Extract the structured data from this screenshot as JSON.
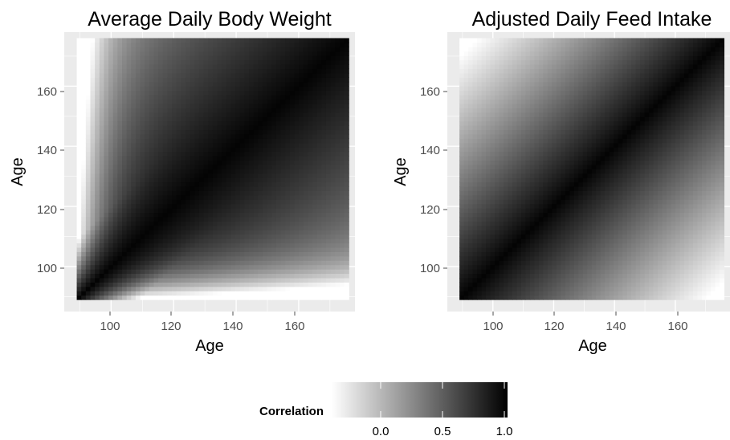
{
  "chart_data": [
    {
      "type": "heatmap",
      "title": "Average Daily Body Weight",
      "xlabel": "Age",
      "ylabel": "Age",
      "xlim": [
        85,
        178
      ],
      "ylim": [
        85,
        178
      ],
      "x_range": [
        89,
        176
      ],
      "y_range": [
        89,
        176
      ],
      "x_ticks": [
        100,
        120,
        140,
        160
      ],
      "y_ticks": [
        100,
        120,
        140,
        160
      ],
      "grid": true,
      "colormap": "white-to-black"
    },
    {
      "type": "heatmap",
      "title": "Adjusted Daily Feed Intake",
      "xlabel": "Age",
      "ylabel": "Age",
      "xlim": [
        85,
        178
      ],
      "ylim": [
        85,
        178
      ],
      "x_range": [
        89,
        176
      ],
      "y_range": [
        89,
        176
      ],
      "x_ticks": [
        100,
        120,
        140,
        160
      ],
      "y_ticks": [
        100,
        120,
        140,
        160
      ],
      "grid": true,
      "colormap": "white-to-black"
    }
  ],
  "legend": {
    "title": "Correlation",
    "range": [
      -0.4,
      1.02
    ],
    "ticks": [
      0.0,
      0.5,
      1.0
    ],
    "tick_labels": [
      "0.0",
      "0.5",
      "1.0"
    ],
    "placement": "bottom",
    "colors": {
      "low": "#ffffff",
      "high": "#000000"
    }
  },
  "colors": {
    "panel_background": "#ebebeb",
    "grid": "#ffffff"
  }
}
